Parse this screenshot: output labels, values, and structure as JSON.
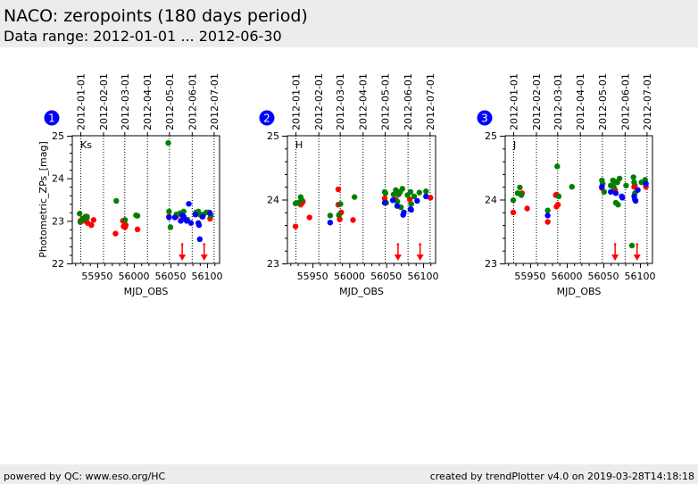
{
  "header": {
    "title": "NACO: zeropoints (180 days period)",
    "subtitle": "Data range: 2012-01-01 ... 2012-06-30"
  },
  "footer": {
    "left": "powered by QC: www.eso.org/HC",
    "right": "created by trendPlotter v4.0 on 2019-03-28T14:18:18"
  },
  "colors": {
    "red": "#ff0000",
    "green": "#008000",
    "blue": "#0000ff",
    "badge": "#0000ff",
    "header_bg": "#ececec"
  },
  "chart_data": [
    {
      "type": "scatter",
      "panel_number": "1",
      "band_label": "Ks",
      "xlabel": "MJD_OBS",
      "ylabel": "Photometric_ZPs_[mag]",
      "xlim": [
        55916,
        56117
      ],
      "ylim": [
        22,
        25
      ],
      "xticks": [
        55950,
        56000,
        56050,
        56100
      ],
      "yticks": [
        22,
        23,
        24,
        25
      ],
      "top_date_labels": [
        "2012-01-01",
        "2012-02-01",
        "2012-03-01",
        "2012-04-01",
        "2012-05-01",
        "2012-06-01",
        "2012-07-01"
      ],
      "top_date_mjd": [
        55927,
        55958,
        55987,
        56018,
        56048,
        56079,
        56109
      ],
      "upper_limit_arrows": [
        {
          "x": 56066,
          "from": 22.45
        },
        {
          "x": 56096,
          "from": 22.45
        }
      ],
      "series": [
        {
          "name": "red",
          "points": [
            [
              55927,
              23.0
            ],
            [
              55930,
              23.05
            ],
            [
              55933,
              23.0
            ],
            [
              55936,
              23.1
            ],
            [
              55937,
              22.95
            ],
            [
              55942,
              22.9
            ],
            [
              55945,
              23.02
            ],
            [
              55975,
              22.7
            ],
            [
              55985,
              23.0
            ],
            [
              55986,
              22.87
            ],
            [
              55988,
              22.85
            ],
            [
              55989,
              22.9
            ],
            [
              56005,
              22.8
            ],
            [
              56048,
              23.1
            ],
            [
              56058,
              23.1
            ],
            [
              56068,
              23.05
            ],
            [
              56084,
              23.15
            ],
            [
              56093,
              23.1
            ],
            [
              56104,
              23.05
            ]
          ]
        },
        {
          "name": "green",
          "points": [
            [
              55926,
              23.17
            ],
            [
              55927,
              22.97
            ],
            [
              55931,
              23.05
            ],
            [
              55934,
              23.1
            ],
            [
              55936,
              23.07
            ],
            [
              55976,
              23.47
            ],
            [
              55988,
              23.02
            ],
            [
              56003,
              23.13
            ],
            [
              56005,
              23.12
            ],
            [
              56047,
              24.83
            ],
            [
              56048,
              23.22
            ],
            [
              56050,
              22.85
            ],
            [
              56058,
              23.15
            ],
            [
              56063,
              23.18
            ],
            [
              56068,
              23.22
            ],
            [
              56073,
              23.03
            ],
            [
              56085,
              23.2
            ],
            [
              56088,
              23.22
            ],
            [
              56090,
              23.15
            ],
            [
              56095,
              23.15
            ],
            [
              56099,
              23.2
            ],
            [
              56103,
              23.2
            ],
            [
              56105,
              23.12
            ]
          ]
        },
        {
          "name": "blue",
          "points": [
            [
              56048,
              23.08
            ],
            [
              56056,
              23.08
            ],
            [
              56064,
              23.0
            ],
            [
              56066,
              23.13
            ],
            [
              56068,
              23.1
            ],
            [
              56072,
              23.0
            ],
            [
              56075,
              23.4
            ],
            [
              56078,
              22.95
            ],
            [
              56084,
              23.15
            ],
            [
              56088,
              22.95
            ],
            [
              56089,
              22.9
            ],
            [
              56090,
              22.57
            ],
            [
              56094,
              23.1
            ],
            [
              56104,
              23.18
            ]
          ]
        }
      ]
    },
    {
      "type": "scatter",
      "panel_number": "2",
      "band_label": "H",
      "xlabel": "MJD_OBS",
      "ylabel": "",
      "xlim": [
        55916,
        56117
      ],
      "ylim": [
        23,
        25
      ],
      "xticks": [
        55950,
        56000,
        56050,
        56100
      ],
      "yticks": [
        23,
        24,
        25
      ],
      "top_date_labels": [
        "2012-01-01",
        "2012-02-01",
        "2012-03-01",
        "2012-04-01",
        "2012-05-01",
        "2012-06-01",
        "2012-07-01"
      ],
      "top_date_mjd": [
        55927,
        55958,
        55987,
        56018,
        56048,
        56079,
        56109
      ],
      "upper_limit_arrows": [
        {
          "x": 56066,
          "from": 23.3
        },
        {
          "x": 56096,
          "from": 23.3
        }
      ],
      "series": [
        {
          "name": "red",
          "points": [
            [
              55927,
              23.58
            ],
            [
              55934,
              23.92
            ],
            [
              55936,
              23.95
            ],
            [
              55937,
              23.97
            ],
            [
              55946,
              23.72
            ],
            [
              55985,
              24.16
            ],
            [
              55985,
              23.92
            ],
            [
              55986,
              23.75
            ],
            [
              55987,
              23.69
            ],
            [
              55989,
              23.8
            ],
            [
              56005,
              23.68
            ],
            [
              56048,
              24.02
            ],
            [
              56063,
              24.0
            ],
            [
              56082,
              24.0
            ],
            [
              56110,
              24.03
            ]
          ]
        },
        {
          "name": "green",
          "points": [
            [
              55927,
              23.94
            ],
            [
              55931,
              23.95
            ],
            [
              55934,
              24.04
            ],
            [
              55935,
              24.0
            ],
            [
              55974,
              23.75
            ],
            [
              55986,
              23.76
            ],
            [
              55988,
              23.93
            ],
            [
              56007,
              24.04
            ],
            [
              56048,
              24.12
            ],
            [
              56049,
              24.1
            ],
            [
              56050,
              23.95
            ],
            [
              56060,
              24.08
            ],
            [
              56063,
              24.15
            ],
            [
              56064,
              24.1
            ],
            [
              56065,
              23.97
            ],
            [
              56067,
              24.08
            ],
            [
              56069,
              24.12
            ],
            [
              56070,
              23.88
            ],
            [
              56072,
              24.17
            ],
            [
              56079,
              24.07
            ],
            [
              56083,
              24.12
            ],
            [
              56084,
              23.93
            ],
            [
              56088,
              24.05
            ],
            [
              56095,
              24.11
            ],
            [
              56104,
              24.13
            ]
          ]
        },
        {
          "name": "blue",
          "points": [
            [
              55974,
              23.64
            ],
            [
              56048,
              23.95
            ],
            [
              56059,
              23.99
            ],
            [
              56065,
              23.9
            ],
            [
              56073,
              23.76
            ],
            [
              56074,
              23.8
            ],
            [
              56083,
              23.85
            ],
            [
              56084,
              23.84
            ],
            [
              56092,
              23.98
            ],
            [
              56104,
              24.05
            ]
          ]
        }
      ]
    },
    {
      "type": "scatter",
      "panel_number": "3",
      "band_label": "J",
      "xlabel": "MJD_OBS",
      "ylabel": "",
      "xlim": [
        55916,
        56117
      ],
      "ylim": [
        23,
        25
      ],
      "xticks": [
        55950,
        56000,
        56050,
        56100
      ],
      "yticks": [
        23,
        24,
        25
      ],
      "top_date_labels": [
        "2012-01-01",
        "2012-02-01",
        "2012-03-01",
        "2012-04-01",
        "2012-05-01",
        "2012-06-01",
        "2012-07-01"
      ],
      "top_date_mjd": [
        55927,
        55958,
        55987,
        56018,
        56048,
        56079,
        56109
      ],
      "upper_limit_arrows": [
        {
          "x": 56066,
          "from": 23.3
        },
        {
          "x": 56096,
          "from": 23.3
        }
      ],
      "series": [
        {
          "name": "red",
          "points": [
            [
              55927,
              23.8
            ],
            [
              55939,
              24.1
            ],
            [
              55946,
              23.86
            ],
            [
              55974,
              23.65
            ],
            [
              55985,
              24.07
            ],
            [
              55986,
              24.08
            ],
            [
              55986,
              23.89
            ],
            [
              55988,
              23.92
            ],
            [
              56048,
              24.18
            ],
            [
              56064,
              24.13
            ],
            [
              56066,
              24.15
            ],
            [
              56092,
              24.2
            ],
            [
              56093,
              24.22
            ],
            [
              56108,
              24.2
            ]
          ]
        },
        {
          "name": "green",
          "points": [
            [
              55927,
              23.99
            ],
            [
              55933,
              24.1
            ],
            [
              55936,
              24.19
            ],
            [
              55938,
              24.07
            ],
            [
              55974,
              23.83
            ],
            [
              55987,
              24.52
            ],
            [
              55989,
              24.05
            ],
            [
              56007,
              24.2
            ],
            [
              56048,
              24.3
            ],
            [
              56049,
              24.25
            ],
            [
              56051,
              24.12
            ],
            [
              56060,
              24.22
            ],
            [
              56063,
              24.3
            ],
            [
              56064,
              24.2
            ],
            [
              56066,
              24.28
            ],
            [
              56067,
              23.95
            ],
            [
              56069,
              24.27
            ],
            [
              56070,
              23.92
            ],
            [
              56072,
              24.33
            ],
            [
              56081,
              24.22
            ],
            [
              56089,
              23.28
            ],
            [
              56091,
              24.35
            ],
            [
              56092,
              24.27
            ],
            [
              56093,
              24.1
            ],
            [
              56102,
              24.27
            ],
            [
              56107,
              24.31
            ]
          ]
        },
        {
          "name": "blue",
          "points": [
            [
              55974,
              23.75
            ],
            [
              56048,
              24.2
            ],
            [
              56060,
              24.12
            ],
            [
              56067,
              24.1
            ],
            [
              56075,
              24.05
            ],
            [
              56076,
              24.03
            ],
            [
              56092,
              24.05
            ],
            [
              56093,
              24.0
            ],
            [
              56094,
              23.98
            ],
            [
              56097,
              24.15
            ],
            [
              56108,
              24.25
            ]
          ]
        }
      ]
    }
  ]
}
